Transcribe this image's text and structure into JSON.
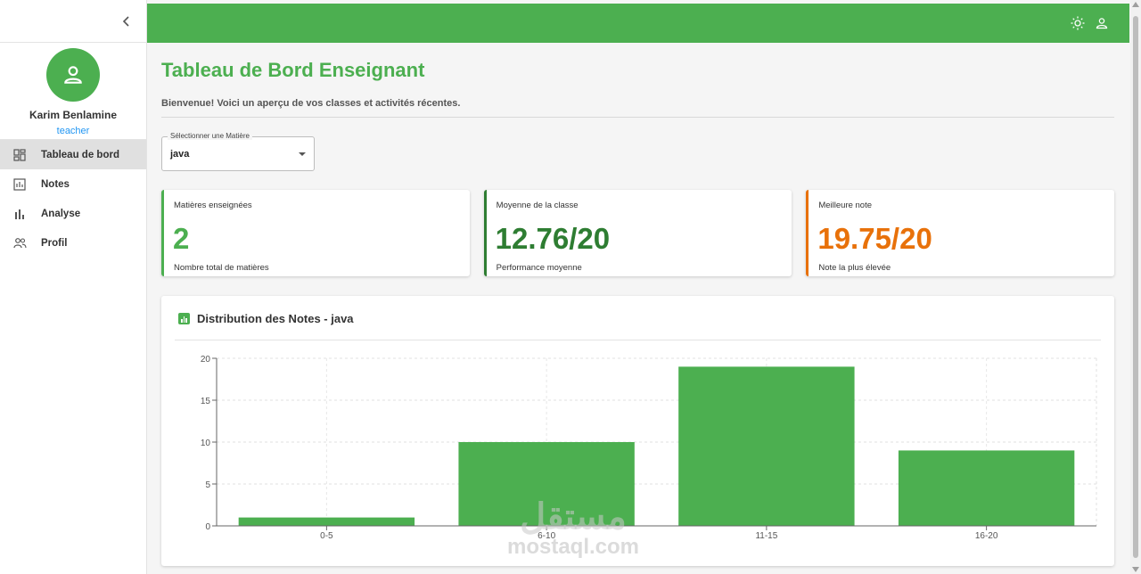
{
  "sidebar": {
    "user": {
      "name": "Karim Benlamine",
      "role": "teacher"
    },
    "items": [
      {
        "label": "Tableau de bord",
        "icon": "dashboard-icon",
        "active": true
      },
      {
        "label": "Notes",
        "icon": "grades-icon",
        "active": false
      },
      {
        "label": "Analyse",
        "icon": "bar-chart-icon",
        "active": false
      },
      {
        "label": "Profil",
        "icon": "people-icon",
        "active": false
      }
    ]
  },
  "header": {
    "title": "Tableau de Bord Enseignant",
    "subtitle": "Bienvenue! Voici un aperçu de vos classes et activités récentes."
  },
  "subject_select": {
    "label": "Sélectionner une Matière",
    "value": "java"
  },
  "stats": [
    {
      "label": "Matières enseignées",
      "value": "2",
      "sub": "Nombre total de matières",
      "color": "#4caf50"
    },
    {
      "label": "Moyenne de la classe",
      "value": "12.76/20",
      "sub": "Performance moyenne",
      "color": "#2e7d32"
    },
    {
      "label": "Meilleure note",
      "value": "19.75/20",
      "sub": "Note la plus élevée",
      "color": "#e8710a"
    }
  ],
  "chart_section": {
    "title": "Distribution des Notes - java"
  },
  "chart_data": {
    "type": "bar",
    "categories": [
      "0-5",
      "6-10",
      "11-15",
      "16-20"
    ],
    "values": [
      1,
      10,
      19,
      9
    ],
    "ylim": [
      0,
      20
    ],
    "yticks": [
      0,
      5,
      10,
      15,
      20
    ],
    "grid": true,
    "bar_color": "#4caf50",
    "title": "",
    "xlabel": "",
    "ylabel": ""
  },
  "watermark": {
    "arabic": "مستقل",
    "latin": "mostaql.com"
  },
  "colors": {
    "accent": "#4caf50",
    "role": "#2196f3"
  }
}
